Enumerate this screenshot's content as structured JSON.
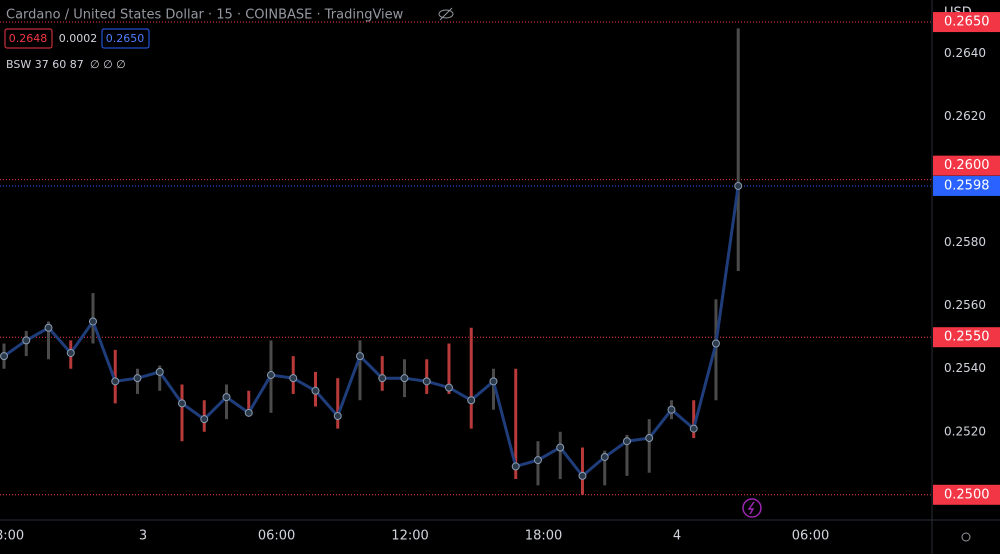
{
  "header": {
    "symbol": "Cardano / United States Dollar · 15 · COINBASE · TradingView",
    "bid": "0.2648",
    "spread": "0.0002",
    "ask": "0.2650",
    "indicator": "BSW 37 60 87",
    "indicator_values": "∅ ∅ ∅",
    "currency": "USD"
  },
  "chart_data": {
    "type": "range",
    "x": [
      -6.25,
      -5.25,
      -4.25,
      -3.25,
      -2.25,
      -1.25,
      -0.25,
      0.75,
      1.75,
      2.75,
      3.75,
      4.75,
      5.75,
      6.75,
      7.75,
      8.75,
      9.75,
      10.75,
      11.75,
      12.75,
      13.75,
      14.75,
      15.75,
      16.75,
      17.75,
      18.75,
      19.75,
      20.75,
      21.75,
      22.75,
      23.75,
      24.75,
      25.75,
      26.75
    ],
    "values": [
      0.2544,
      0.2549,
      0.2553,
      0.2545,
      0.2555,
      0.2536,
      0.2537,
      0.2539,
      0.2529,
      0.2524,
      0.2531,
      0.2526,
      0.2538,
      0.2537,
      0.2533,
      0.2525,
      0.2544,
      0.2537,
      0.2537,
      0.2536,
      0.2534,
      0.253,
      0.2536,
      0.2509,
      0.2511,
      0.2515,
      0.2506,
      0.2512,
      0.2517,
      0.2518,
      0.2527,
      0.2521,
      0.2548,
      0.2598
    ],
    "high": [
      0.2548,
      0.2552,
      0.2555,
      0.2549,
      0.2564,
      0.2546,
      0.254,
      0.2541,
      0.2535,
      0.253,
      0.2535,
      0.2533,
      0.2549,
      0.2544,
      0.2539,
      0.2537,
      0.2549,
      0.2544,
      0.2543,
      0.2543,
      0.2548,
      0.2553,
      0.254,
      0.254,
      0.2517,
      0.252,
      0.2515,
      0.2514,
      0.2519,
      0.2524,
      0.253,
      0.253,
      0.2562,
      0.2648
    ],
    "low": [
      0.254,
      0.2544,
      0.2543,
      0.254,
      0.2548,
      0.2529,
      0.2532,
      0.2533,
      0.2517,
      0.252,
      0.2524,
      0.2525,
      0.2526,
      0.2532,
      0.2528,
      0.2521,
      0.253,
      0.2533,
      0.2531,
      0.2532,
      0.2532,
      0.2521,
      0.2527,
      0.2505,
      0.2503,
      0.2505,
      0.25,
      0.2503,
      0.2506,
      0.2507,
      0.2524,
      0.2518,
      0.253,
      0.2571
    ],
    "xlim": [
      -6.43,
      35.46
    ],
    "ylim": [
      0.2492,
      0.2657
    ],
    "xticks": [
      {
        "value": -6,
        "label": "8:00"
      },
      {
        "value": 0,
        "label": "3"
      },
      {
        "value": 6,
        "label": "06:00"
      },
      {
        "value": 12,
        "label": "12:00"
      },
      {
        "value": 18,
        "label": "18:00"
      },
      {
        "value": 24,
        "label": "4"
      },
      {
        "value": 30,
        "label": "06:00"
      }
    ],
    "yticks": [
      {
        "value": 0.252,
        "label": "0.2520"
      },
      {
        "value": 0.254,
        "label": "0.2540"
      },
      {
        "value": 0.256,
        "label": "0.2560"
      },
      {
        "value": 0.258,
        "label": "0.2580"
      },
      {
        "value": 0.262,
        "label": "0.2620"
      },
      {
        "value": 0.264,
        "label": "0.2640"
      }
    ],
    "price_lines": [
      {
        "value": 0.265,
        "label": "0.2650",
        "color": "#f23645"
      },
      {
        "value": 0.26,
        "label": "0.2600",
        "color": "#f23645"
      },
      {
        "value": 0.2598,
        "label": "0.2598",
        "color": "#2962ff"
      },
      {
        "value": 0.255,
        "label": "0.2550",
        "color": "#f23645"
      },
      {
        "value": 0.25,
        "label": "0.2500",
        "color": "#f23645"
      }
    ],
    "line_color": "#1f3d7a",
    "up_color": "#4b4b4b",
    "down_color": "#b83a3a"
  }
}
